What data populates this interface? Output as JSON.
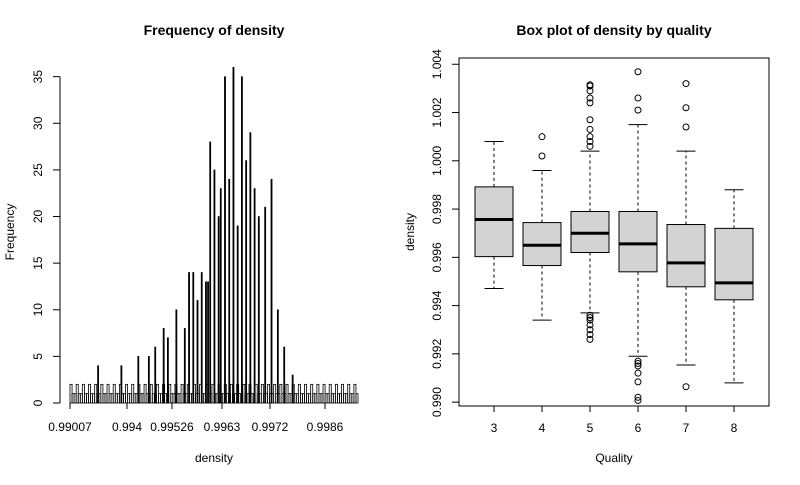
{
  "chart_data": [
    {
      "type": "bar",
      "title": "Frequency of density",
      "xlabel": "density",
      "ylabel": "Frequency",
      "x_tick_labels": [
        "0.99007",
        "0.994",
        "0.99526",
        "0.9963",
        "0.9972",
        "0.9986"
      ],
      "y_ticks": [
        0,
        5,
        10,
        15,
        20,
        25,
        30,
        35
      ],
      "ylim": [
        0,
        37
      ],
      "x_range": [
        0.99007,
        1.00369
      ],
      "grid": false,
      "peaks": [
        {
          "x": 0.9914,
          "count": 4
        },
        {
          "x": 0.9925,
          "count": 4
        },
        {
          "x": 0.9933,
          "count": 5
        },
        {
          "x": 0.9938,
          "count": 5
        },
        {
          "x": 0.9941,
          "count": 6
        },
        {
          "x": 0.9945,
          "count": 8
        },
        {
          "x": 0.9947,
          "count": 7
        },
        {
          "x": 0.9951,
          "count": 10
        },
        {
          "x": 0.9955,
          "count": 8
        },
        {
          "x": 0.9957,
          "count": 14
        },
        {
          "x": 0.9959,
          "count": 14
        },
        {
          "x": 0.9961,
          "count": 11
        },
        {
          "x": 0.9963,
          "count": 14
        },
        {
          "x": 0.9965,
          "count": 13
        },
        {
          "x": 0.9966,
          "count": 13
        },
        {
          "x": 0.9967,
          "count": 28
        },
        {
          "x": 0.9969,
          "count": 25
        },
        {
          "x": 0.9971,
          "count": 20
        },
        {
          "x": 0.9972,
          "count": 23
        },
        {
          "x": 0.9974,
          "count": 35
        },
        {
          "x": 0.9976,
          "count": 24
        },
        {
          "x": 0.9978,
          "count": 36
        },
        {
          "x": 0.998,
          "count": 19
        },
        {
          "x": 0.9982,
          "count": 35
        },
        {
          "x": 0.9984,
          "count": 26
        },
        {
          "x": 0.9986,
          "count": 29
        },
        {
          "x": 0.9988,
          "count": 23
        },
        {
          "x": 0.999,
          "count": 20
        },
        {
          "x": 0.9993,
          "count": 21
        },
        {
          "x": 0.9996,
          "count": 24
        },
        {
          "x": 0.9999,
          "count": 10
        },
        {
          "x": 1.0002,
          "count": 6
        },
        {
          "x": 1.0006,
          "count": 3
        }
      ]
    },
    {
      "type": "box",
      "title": "Box plot of density by quality",
      "xlabel": "Quality",
      "ylabel": "density",
      "categories": [
        "3",
        "4",
        "5",
        "6",
        "7",
        "8"
      ],
      "y_ticks": [
        "0.990",
        "0.992",
        "0.994",
        "0.996",
        "0.998",
        "1.000",
        "1.002",
        "1.004"
      ],
      "ylim": [
        0.98984,
        1.00426
      ],
      "grid": false,
      "box_color": "#d3d3d3",
      "boxes": [
        {
          "category": "3",
          "whisker_low": 0.99471,
          "q1": 0.99603,
          "median": 0.99757,
          "q3": 0.99892,
          "whisker_high": 1.0008,
          "outliers": []
        },
        {
          "category": "4",
          "whisker_low": 0.9934,
          "q1": 0.99566,
          "median": 0.9965,
          "q3": 0.99744,
          "whisker_high": 0.9996,
          "outliers": [
            1.0002,
            1.001
          ]
        },
        {
          "category": "5",
          "whisker_low": 0.9937,
          "q1": 0.9962,
          "median": 0.997,
          "q3": 0.9979,
          "whisker_high": 1.0004,
          "outliers": [
            0.9926,
            0.9928,
            0.993,
            0.9932,
            0.9934,
            0.9935,
            0.9936,
            1.0006,
            1.0008,
            1.001,
            1.0013,
            1.0017,
            1.0024,
            1.0026,
            1.0029,
            1.0031,
            1.00315
          ]
        },
        {
          "category": "6",
          "whisker_low": 0.9919,
          "q1": 0.9954,
          "median": 0.99656,
          "q3": 0.9979,
          "whisker_high": 1.0015,
          "outliers": [
            0.99007,
            0.9902,
            0.99084,
            0.9912,
            0.9915,
            0.9916,
            0.9917,
            1.0021,
            1.0026,
            1.00369
          ]
        },
        {
          "category": "7",
          "whisker_low": 0.99154,
          "q1": 0.99478,
          "median": 0.99577,
          "q3": 0.99736,
          "whisker_high": 1.0004,
          "outliers": [
            0.99064,
            1.0014,
            1.0022,
            1.0032
          ]
        },
        {
          "category": "8",
          "whisker_low": 0.9908,
          "q1": 0.99424,
          "median": 0.99494,
          "q3": 0.9972,
          "whisker_high": 0.9988,
          "outliers": []
        }
      ]
    }
  ]
}
